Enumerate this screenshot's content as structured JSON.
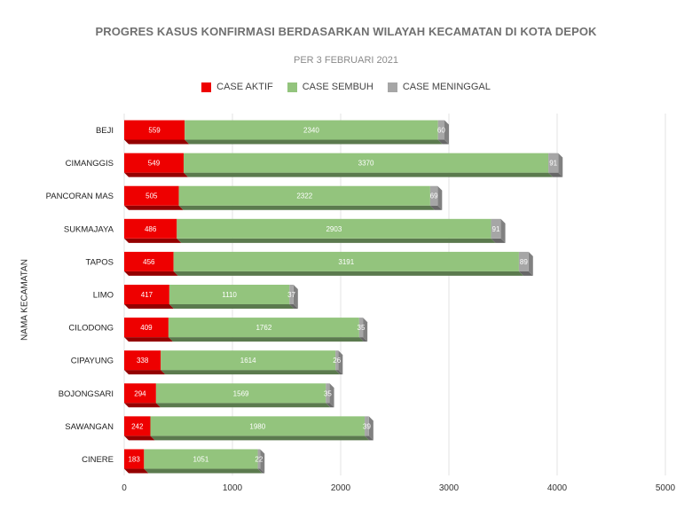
{
  "chart_data": {
    "type": "bar",
    "orientation": "horizontal",
    "stacked": true,
    "title": "PROGRES KASUS KONFIRMASI BERDASARKAN WILAYAH KECAMATAN DI KOTA DEPOK",
    "subtitle": "PER 3 FEBRUARI 2021",
    "ylabel": "NAMA KECAMATAN",
    "xlabel": "",
    "xlim": [
      0,
      5000
    ],
    "xticks": [
      0,
      1000,
      2000,
      3000,
      4000,
      5000
    ],
    "grid": true,
    "legend_position": "top",
    "categories": [
      "BEJI",
      "CIMANGGIS",
      "PANCORAN MAS",
      "SUKMAJAYA",
      "TAPOS",
      "LIMO",
      "CILODONG",
      "CIPAYUNG",
      "BOJONGSARI",
      "SAWANGAN",
      "CINERE"
    ],
    "series": [
      {
        "name": "CASE AKTIF",
        "color": "#ee0000",
        "values": [
          559,
          549,
          505,
          486,
          456,
          417,
          409,
          338,
          294,
          242,
          183
        ]
      },
      {
        "name": "CASE SEMBUH",
        "color": "#93c47d",
        "values": [
          2340,
          3370,
          2322,
          2903,
          3191,
          1110,
          1762,
          1614,
          1569,
          1980,
          1051
        ]
      },
      {
        "name": "CASE MENINGGAL",
        "color": "#a6a6a6",
        "values": [
          60,
          91,
          69,
          91,
          89,
          37,
          35,
          26,
          35,
          39,
          22
        ]
      }
    ]
  }
}
